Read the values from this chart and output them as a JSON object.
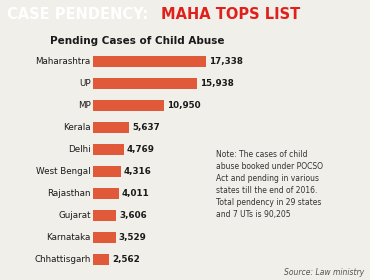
{
  "title_black": "CASE PENDENCY: ",
  "title_red": "MAHA TOPS LIST",
  "subtitle": "Pending Cases of Child Abuse",
  "categories": [
    "Maharashtra",
    "UP",
    "MP",
    "Kerala",
    "Delhi",
    "West Bengal",
    "Rajasthan",
    "Gujarat",
    "Karnataka",
    "Chhattisgarh"
  ],
  "values": [
    17338,
    15938,
    10950,
    5637,
    4769,
    4316,
    4011,
    3606,
    3529,
    2562
  ],
  "labels": [
    "17,338",
    "15,938",
    "10,950",
    "5,637",
    "4,769",
    "4,316",
    "4,011",
    "3,606",
    "3,529",
    "2,562"
  ],
  "bar_color": "#e05a3a",
  "header_bg": "#1c1c1c",
  "chart_bg": "#f0efea",
  "title_color_black": "#ffffff",
  "title_color_red": "#e0201a",
  "note_text": "Note: The cases of child\nabuse booked under POCSO\nAct and pending in various\nstates till the end of 2016.\nTotal pendency in 29 states\nand 7 UTs is 90,205",
  "source_text": "Source: Law ministry",
  "bar_scale": 17500,
  "note_fontsize": 5.5,
  "source_fontsize": 5.5
}
